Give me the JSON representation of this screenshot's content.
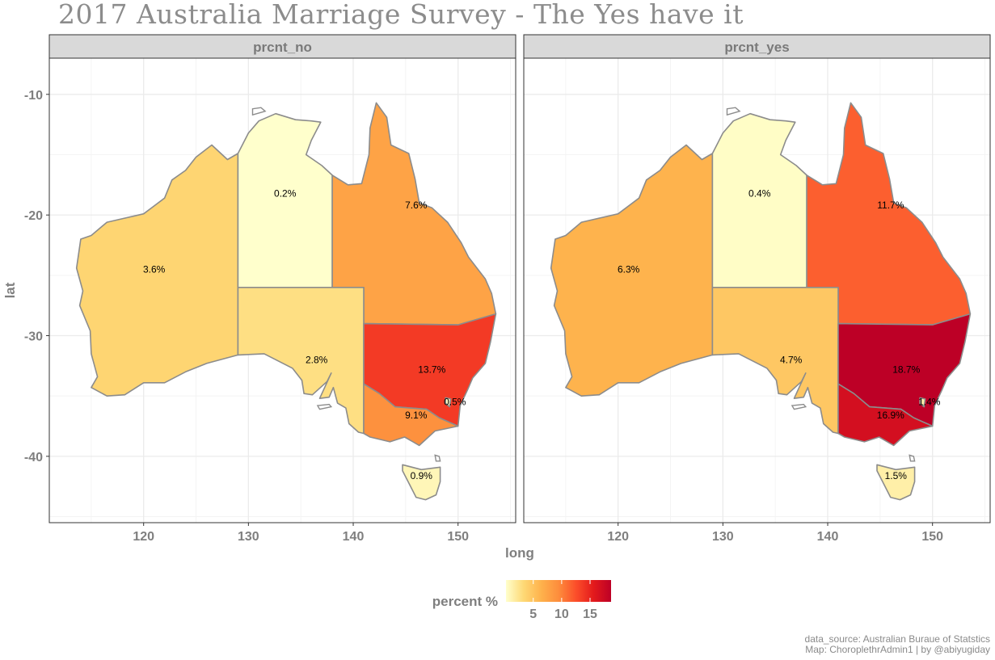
{
  "title": "2017 Australia Marriage Survey - The Yes have it",
  "chart_data": {
    "type": "choropleth map",
    "x_axis": {
      "label": "long",
      "ticks": [
        120,
        130,
        140,
        150
      ],
      "range": [
        111,
        155.5
      ]
    },
    "y_axis": {
      "label": "lat",
      "ticks": [
        -10,
        -20,
        -30,
        -40
      ],
      "range": [
        -45.5,
        -7
      ]
    },
    "panels": [
      {
        "name": "prcnt_no",
        "regions": [
          {
            "name": "Western Australia",
            "label": "3.6%",
            "value": 3.6,
            "label_lon": 121,
            "label_lat": -24.5
          },
          {
            "name": "Northern Territory",
            "label": "0.2%",
            "value": 0.2,
            "label_lon": 133.5,
            "label_lat": -18.2
          },
          {
            "name": "Queensland",
            "label": "7.6%",
            "value": 7.6,
            "label_lon": 146,
            "label_lat": -19.2
          },
          {
            "name": "South Australia",
            "label": "2.8%",
            "value": 2.8,
            "label_lon": 136.5,
            "label_lat": -32
          },
          {
            "name": "New South Wales",
            "label": "13.7%",
            "value": 13.7,
            "label_lon": 147.5,
            "label_lat": -32.8
          },
          {
            "name": "Victoria",
            "label": "9.1%",
            "value": 9.1,
            "label_lon": 146,
            "label_lat": -36.6
          },
          {
            "name": "Australian Capital Territory",
            "label": "0.5%",
            "value": 0.5,
            "label_lon": 149.7,
            "label_lat": -35.5
          },
          {
            "name": "Tasmania",
            "label": "0.9%",
            "value": 0.9,
            "label_lon": 146.5,
            "label_lat": -41.6
          }
        ]
      },
      {
        "name": "prcnt_yes",
        "regions": [
          {
            "name": "Western Australia",
            "label": "6.3%",
            "value": 6.3,
            "label_lon": 121,
            "label_lat": -24.5
          },
          {
            "name": "Northern Territory",
            "label": "0.4%",
            "value": 0.4,
            "label_lon": 133.5,
            "label_lat": -18.2
          },
          {
            "name": "Queensland",
            "label": "11.7%",
            "value": 11.7,
            "label_lon": 146,
            "label_lat": -19.2
          },
          {
            "name": "South Australia",
            "label": "4.7%",
            "value": 4.7,
            "label_lon": 136.5,
            "label_lat": -32
          },
          {
            "name": "New South Wales",
            "label": "18.7%",
            "value": 18.7,
            "label_lon": 147.5,
            "label_lat": -32.8
          },
          {
            "name": "Victoria",
            "label": "16.9%",
            "value": 16.9,
            "label_lon": 146,
            "label_lat": -36.6
          },
          {
            "name": "Australian Capital Territory",
            "label": "1.4%",
            "value": 1.4,
            "label_lon": 149.7,
            "label_lat": -35.5
          },
          {
            "name": "Tasmania",
            "label": "1.5%",
            "value": 1.5,
            "label_lon": 146.5,
            "label_lat": -41.6
          }
        ]
      }
    ],
    "legend": {
      "title": "percent %",
      "ticks": [
        5,
        10,
        15
      ],
      "range": [
        0.2,
        18.7
      ],
      "colors": [
        "#ffffcc",
        "#fed976",
        "#feb24c",
        "#fd8d3c",
        "#fc4e2a",
        "#e31a1c",
        "#bd0026"
      ]
    }
  },
  "caption": [
    "data_source: Australian Buraue of Statstics",
    "Map: ChoroplethrAdmin1 | by @abiyugiday"
  ],
  "colors": {
    "border": "#8c8c8c",
    "strip_bg": "#d9d9d9",
    "grid": "#ebebeb"
  }
}
